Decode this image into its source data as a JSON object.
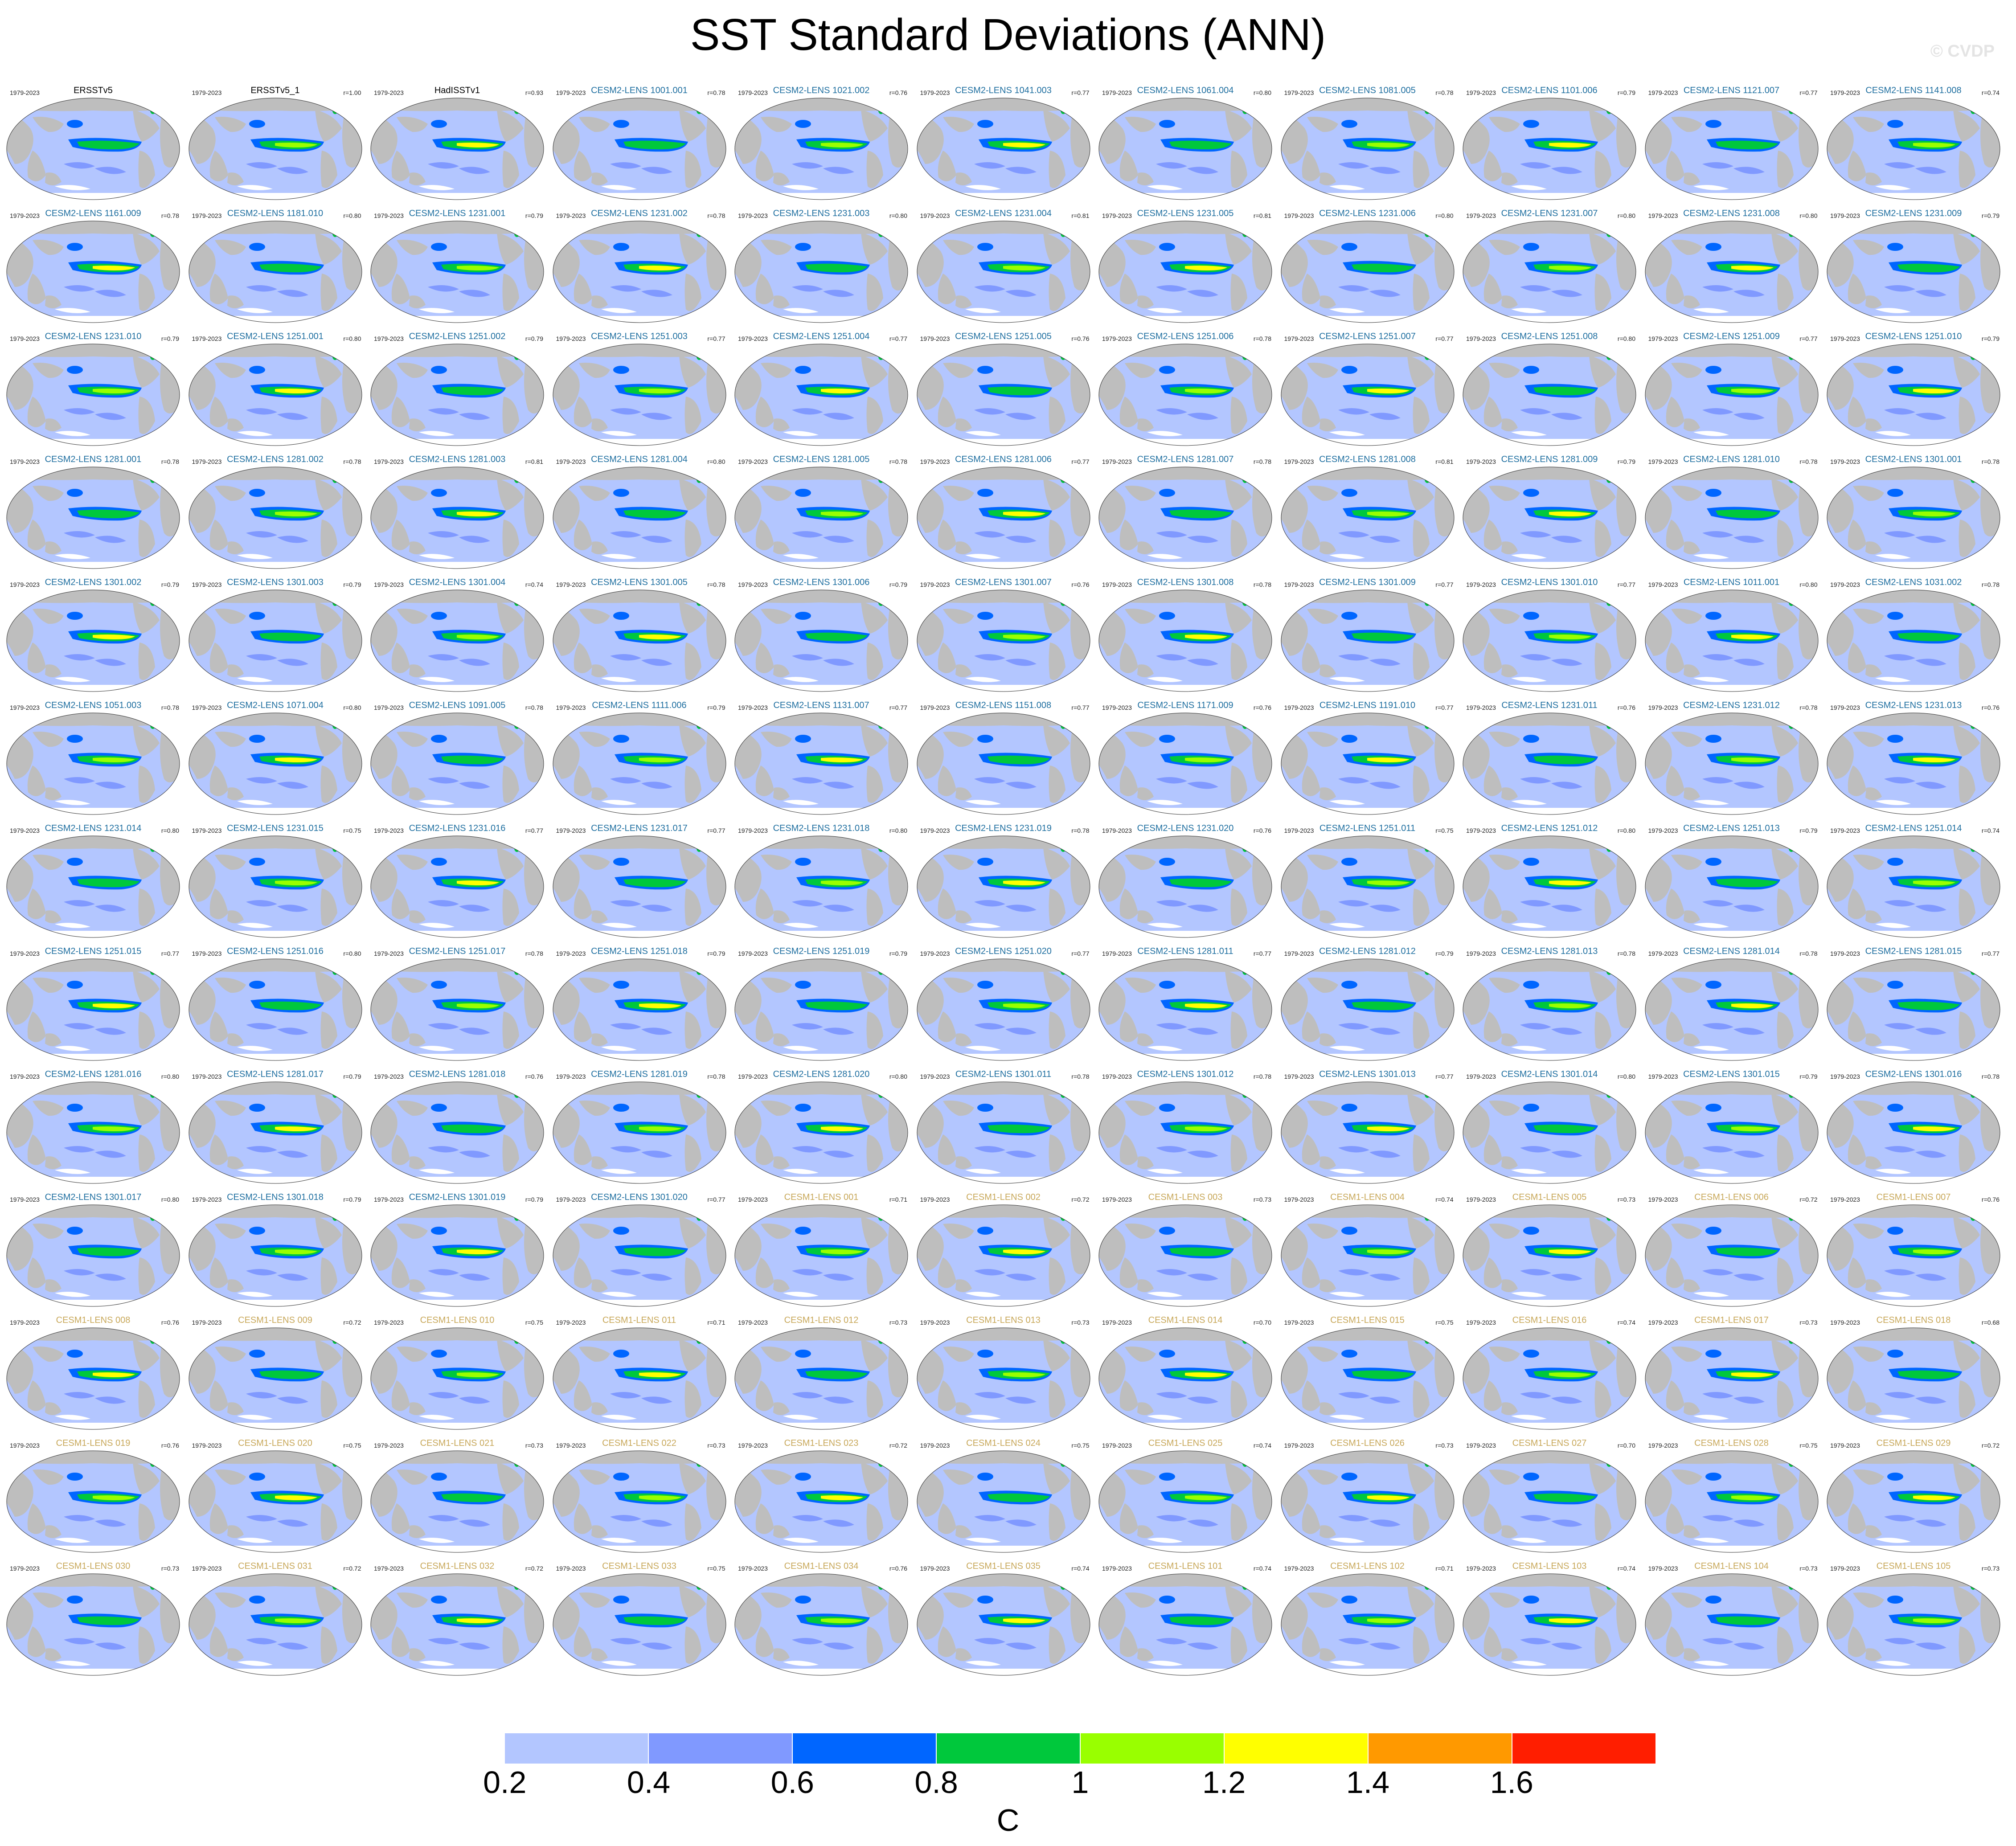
{
  "title": "SST Standard Deviations (ANN)",
  "watermark": "© CVDP",
  "colors": {
    "land": "#bebebe",
    "ocean_base": "#b3c6ff",
    "group_obs": "#000000",
    "group_cesm2": "#1f6fa0",
    "group_cesm1": "#c8a85a"
  },
  "panel_rows": [
    [
      {
        "name": "ERSSTv5",
        "period": "1979-2023",
        "r": "",
        "group": "obs"
      },
      {
        "name": "ERSSTv5_1",
        "period": "1979-2023",
        "r": "r=1.00",
        "group": "obs"
      },
      {
        "name": "HadISSTv1",
        "period": "1979-2023",
        "r": "r=0.93",
        "group": "obs"
      },
      {
        "name": "CESM2-LENS 1001.001",
        "period": "1979-2023",
        "r": "r=0.78",
        "group": "cesm2"
      },
      {
        "name": "CESM2-LENS 1021.002",
        "period": "1979-2023",
        "r": "r=0.76",
        "group": "cesm2"
      },
      {
        "name": "CESM2-LENS 1041.003",
        "period": "1979-2023",
        "r": "r=0.77",
        "group": "cesm2"
      },
      {
        "name": "CESM2-LENS 1061.004",
        "period": "1979-2023",
        "r": "r=0.80",
        "group": "cesm2"
      },
      {
        "name": "CESM2-LENS 1081.005",
        "period": "1979-2023",
        "r": "r=0.78",
        "group": "cesm2"
      },
      {
        "name": "CESM2-LENS 1101.006",
        "period": "1979-2023",
        "r": "r=0.79",
        "group": "cesm2"
      },
      {
        "name": "CESM2-LENS 1121.007",
        "period": "1979-2023",
        "r": "r=0.77",
        "group": "cesm2"
      },
      {
        "name": "CESM2-LENS 1141.008",
        "period": "1979-2023",
        "r": "r=0.74",
        "group": "cesm2"
      }
    ],
    [
      {
        "name": "CESM2-LENS 1161.009",
        "period": "1979-2023",
        "r": "r=0.78",
        "group": "cesm2"
      },
      {
        "name": "CESM2-LENS 1181.010",
        "period": "1979-2023",
        "r": "r=0.80",
        "group": "cesm2"
      },
      {
        "name": "CESM2-LENS 1231.001",
        "period": "1979-2023",
        "r": "r=0.79",
        "group": "cesm2"
      },
      {
        "name": "CESM2-LENS 1231.002",
        "period": "1979-2023",
        "r": "r=0.78",
        "group": "cesm2"
      },
      {
        "name": "CESM2-LENS 1231.003",
        "period": "1979-2023",
        "r": "r=0.80",
        "group": "cesm2"
      },
      {
        "name": "CESM2-LENS 1231.004",
        "period": "1979-2023",
        "r": "r=0.81",
        "group": "cesm2"
      },
      {
        "name": "CESM2-LENS 1231.005",
        "period": "1979-2023",
        "r": "r=0.81",
        "group": "cesm2"
      },
      {
        "name": "CESM2-LENS 1231.006",
        "period": "1979-2023",
        "r": "r=0.80",
        "group": "cesm2"
      },
      {
        "name": "CESM2-LENS 1231.007",
        "period": "1979-2023",
        "r": "r=0.80",
        "group": "cesm2"
      },
      {
        "name": "CESM2-LENS 1231.008",
        "period": "1979-2023",
        "r": "r=0.80",
        "group": "cesm2"
      },
      {
        "name": "CESM2-LENS 1231.009",
        "period": "1979-2023",
        "r": "r=0.79",
        "group": "cesm2"
      }
    ],
    [
      {
        "name": "CESM2-LENS 1231.010",
        "period": "1979-2023",
        "r": "r=0.79",
        "group": "cesm2"
      },
      {
        "name": "CESM2-LENS 1251.001",
        "period": "1979-2023",
        "r": "r=0.80",
        "group": "cesm2"
      },
      {
        "name": "CESM2-LENS 1251.002",
        "period": "1979-2023",
        "r": "r=0.79",
        "group": "cesm2"
      },
      {
        "name": "CESM2-LENS 1251.003",
        "period": "1979-2023",
        "r": "r=0.77",
        "group": "cesm2"
      },
      {
        "name": "CESM2-LENS 1251.004",
        "period": "1979-2023",
        "r": "r=0.77",
        "group": "cesm2"
      },
      {
        "name": "CESM2-LENS 1251.005",
        "period": "1979-2023",
        "r": "r=0.76",
        "group": "cesm2"
      },
      {
        "name": "CESM2-LENS 1251.006",
        "period": "1979-2023",
        "r": "r=0.78",
        "group": "cesm2"
      },
      {
        "name": "CESM2-LENS 1251.007",
        "period": "1979-2023",
        "r": "r=0.77",
        "group": "cesm2"
      },
      {
        "name": "CESM2-LENS 1251.008",
        "period": "1979-2023",
        "r": "r=0.80",
        "group": "cesm2"
      },
      {
        "name": "CESM2-LENS 1251.009",
        "period": "1979-2023",
        "r": "r=0.77",
        "group": "cesm2"
      },
      {
        "name": "CESM2-LENS 1251.010",
        "period": "1979-2023",
        "r": "r=0.79",
        "group": "cesm2"
      }
    ],
    [
      {
        "name": "CESM2-LENS 1281.001",
        "period": "1979-2023",
        "r": "r=0.78",
        "group": "cesm2"
      },
      {
        "name": "CESM2-LENS 1281.002",
        "period": "1979-2023",
        "r": "r=0.78",
        "group": "cesm2"
      },
      {
        "name": "CESM2-LENS 1281.003",
        "period": "1979-2023",
        "r": "r=0.81",
        "group": "cesm2"
      },
      {
        "name": "CESM2-LENS 1281.004",
        "period": "1979-2023",
        "r": "r=0.80",
        "group": "cesm2"
      },
      {
        "name": "CESM2-LENS 1281.005",
        "period": "1979-2023",
        "r": "r=0.78",
        "group": "cesm2"
      },
      {
        "name": "CESM2-LENS 1281.006",
        "period": "1979-2023",
        "r": "r=0.77",
        "group": "cesm2"
      },
      {
        "name": "CESM2-LENS 1281.007",
        "period": "1979-2023",
        "r": "r=0.78",
        "group": "cesm2"
      },
      {
        "name": "CESM2-LENS 1281.008",
        "period": "1979-2023",
        "r": "r=0.81",
        "group": "cesm2"
      },
      {
        "name": "CESM2-LENS 1281.009",
        "period": "1979-2023",
        "r": "r=0.79",
        "group": "cesm2"
      },
      {
        "name": "CESM2-LENS 1281.010",
        "period": "1979-2023",
        "r": "r=0.78",
        "group": "cesm2"
      },
      {
        "name": "CESM2-LENS 1301.001",
        "period": "1979-2023",
        "r": "r=0.78",
        "group": "cesm2"
      }
    ],
    [
      {
        "name": "CESM2-LENS 1301.002",
        "period": "1979-2023",
        "r": "r=0.79",
        "group": "cesm2"
      },
      {
        "name": "CESM2-LENS 1301.003",
        "period": "1979-2023",
        "r": "r=0.79",
        "group": "cesm2"
      },
      {
        "name": "CESM2-LENS 1301.004",
        "period": "1979-2023",
        "r": "r=0.74",
        "group": "cesm2"
      },
      {
        "name": "CESM2-LENS 1301.005",
        "period": "1979-2023",
        "r": "r=0.78",
        "group": "cesm2"
      },
      {
        "name": "CESM2-LENS 1301.006",
        "period": "1979-2023",
        "r": "r=0.79",
        "group": "cesm2"
      },
      {
        "name": "CESM2-LENS 1301.007",
        "period": "1979-2023",
        "r": "r=0.76",
        "group": "cesm2"
      },
      {
        "name": "CESM2-LENS 1301.008",
        "period": "1979-2023",
        "r": "r=0.78",
        "group": "cesm2"
      },
      {
        "name": "CESM2-LENS 1301.009",
        "period": "1979-2023",
        "r": "r=0.77",
        "group": "cesm2"
      },
      {
        "name": "CESM2-LENS 1301.010",
        "period": "1979-2023",
        "r": "r=0.77",
        "group": "cesm2"
      },
      {
        "name": "CESM2-LENS 1011.001",
        "period": "1979-2023",
        "r": "r=0.80",
        "group": "cesm2b"
      },
      {
        "name": "CESM2-LENS 1031.002",
        "period": "1979-2023",
        "r": "r=0.78",
        "group": "cesm2b"
      }
    ],
    [
      {
        "name": "CESM2-LENS 1051.003",
        "period": "1979-2023",
        "r": "r=0.78",
        "group": "cesm2b"
      },
      {
        "name": "CESM2-LENS 1071.004",
        "period": "1979-2023",
        "r": "r=0.80",
        "group": "cesm2b"
      },
      {
        "name": "CESM2-LENS 1091.005",
        "period": "1979-2023",
        "r": "r=0.78",
        "group": "cesm2b"
      },
      {
        "name": "CESM2-LENS 1111.006",
        "period": "1979-2023",
        "r": "r=0.79",
        "group": "cesm2b"
      },
      {
        "name": "CESM2-LENS 1131.007",
        "period": "1979-2023",
        "r": "r=0.77",
        "group": "cesm2b"
      },
      {
        "name": "CESM2-LENS 1151.008",
        "period": "1979-2023",
        "r": "r=0.77",
        "group": "cesm2b"
      },
      {
        "name": "CESM2-LENS 1171.009",
        "period": "1979-2023",
        "r": "r=0.76",
        "group": "cesm2b"
      },
      {
        "name": "CESM2-LENS 1191.010",
        "period": "1979-2023",
        "r": "r=0.77",
        "group": "cesm2b"
      },
      {
        "name": "CESM2-LENS 1231.011",
        "period": "1979-2023",
        "r": "r=0.76",
        "group": "cesm2b"
      },
      {
        "name": "CESM2-LENS 1231.012",
        "period": "1979-2023",
        "r": "r=0.78",
        "group": "cesm2b"
      },
      {
        "name": "CESM2-LENS 1231.013",
        "period": "1979-2023",
        "r": "r=0.76",
        "group": "cesm2b"
      }
    ],
    [
      {
        "name": "CESM2-LENS 1231.014",
        "period": "1979-2023",
        "r": "r=0.80",
        "group": "cesm2b"
      },
      {
        "name": "CESM2-LENS 1231.015",
        "period": "1979-2023",
        "r": "r=0.75",
        "group": "cesm2b"
      },
      {
        "name": "CESM2-LENS 1231.016",
        "period": "1979-2023",
        "r": "r=0.77",
        "group": "cesm2b"
      },
      {
        "name": "CESM2-LENS 1231.017",
        "period": "1979-2023",
        "r": "r=0.77",
        "group": "cesm2b"
      },
      {
        "name": "CESM2-LENS 1231.018",
        "period": "1979-2023",
        "r": "r=0.80",
        "group": "cesm2b"
      },
      {
        "name": "CESM2-LENS 1231.019",
        "period": "1979-2023",
        "r": "r=0.78",
        "group": "cesm2b"
      },
      {
        "name": "CESM2-LENS 1231.020",
        "period": "1979-2023",
        "r": "r=0.76",
        "group": "cesm2b"
      },
      {
        "name": "CESM2-LENS 1251.011",
        "period": "1979-2023",
        "r": "r=0.75",
        "group": "cesm2b"
      },
      {
        "name": "CESM2-LENS 1251.012",
        "period": "1979-2023",
        "r": "r=0.80",
        "group": "cesm2b"
      },
      {
        "name": "CESM2-LENS 1251.013",
        "period": "1979-2023",
        "r": "r=0.79",
        "group": "cesm2b"
      },
      {
        "name": "CESM2-LENS 1251.014",
        "period": "1979-2023",
        "r": "r=0.74",
        "group": "cesm2b"
      }
    ],
    [
      {
        "name": "CESM2-LENS 1251.015",
        "period": "1979-2023",
        "r": "r=0.77",
        "group": "cesm2b"
      },
      {
        "name": "CESM2-LENS 1251.016",
        "period": "1979-2023",
        "r": "r=0.80",
        "group": "cesm2b"
      },
      {
        "name": "CESM2-LENS 1251.017",
        "period": "1979-2023",
        "r": "r=0.78",
        "group": "cesm2b"
      },
      {
        "name": "CESM2-LENS 1251.018",
        "period": "1979-2023",
        "r": "r=0.79",
        "group": "cesm2b"
      },
      {
        "name": "CESM2-LENS 1251.019",
        "period": "1979-2023",
        "r": "r=0.79",
        "group": "cesm2b"
      },
      {
        "name": "CESM2-LENS 1251.020",
        "period": "1979-2023",
        "r": "r=0.77",
        "group": "cesm2b"
      },
      {
        "name": "CESM2-LENS 1281.011",
        "period": "1979-2023",
        "r": "r=0.77",
        "group": "cesm2b"
      },
      {
        "name": "CESM2-LENS 1281.012",
        "period": "1979-2023",
        "r": "r=0.79",
        "group": "cesm2b"
      },
      {
        "name": "CESM2-LENS 1281.013",
        "period": "1979-2023",
        "r": "r=0.78",
        "group": "cesm2b"
      },
      {
        "name": "CESM2-LENS 1281.014",
        "period": "1979-2023",
        "r": "r=0.78",
        "group": "cesm2b"
      },
      {
        "name": "CESM2-LENS 1281.015",
        "period": "1979-2023",
        "r": "r=0.77",
        "group": "cesm2b"
      }
    ],
    [
      {
        "name": "CESM2-LENS 1281.016",
        "period": "1979-2023",
        "r": "r=0.80",
        "group": "cesm2b"
      },
      {
        "name": "CESM2-LENS 1281.017",
        "period": "1979-2023",
        "r": "r=0.79",
        "group": "cesm2b"
      },
      {
        "name": "CESM2-LENS 1281.018",
        "period": "1979-2023",
        "r": "r=0.76",
        "group": "cesm2b"
      },
      {
        "name": "CESM2-LENS 1281.019",
        "period": "1979-2023",
        "r": "r=0.78",
        "group": "cesm2b"
      },
      {
        "name": "CESM2-LENS 1281.020",
        "period": "1979-2023",
        "r": "r=0.80",
        "group": "cesm2b"
      },
      {
        "name": "CESM2-LENS 1301.011",
        "period": "1979-2023",
        "r": "r=0.78",
        "group": "cesm2b"
      },
      {
        "name": "CESM2-LENS 1301.012",
        "period": "1979-2023",
        "r": "r=0.78",
        "group": "cesm2b"
      },
      {
        "name": "CESM2-LENS 1301.013",
        "period": "1979-2023",
        "r": "r=0.77",
        "group": "cesm2b"
      },
      {
        "name": "CESM2-LENS 1301.014",
        "period": "1979-2023",
        "r": "r=0.80",
        "group": "cesm2b"
      },
      {
        "name": "CESM2-LENS 1301.015",
        "period": "1979-2023",
        "r": "r=0.79",
        "group": "cesm2b"
      },
      {
        "name": "CESM2-LENS 1301.016",
        "period": "1979-2023",
        "r": "r=0.78",
        "group": "cesm2b"
      }
    ],
    [
      {
        "name": "CESM2-LENS 1301.017",
        "period": "1979-2023",
        "r": "r=0.80",
        "group": "cesm2b"
      },
      {
        "name": "CESM2-LENS 1301.018",
        "period": "1979-2023",
        "r": "r=0.79",
        "group": "cesm2b"
      },
      {
        "name": "CESM2-LENS 1301.019",
        "period": "1979-2023",
        "r": "r=0.79",
        "group": "cesm2b"
      },
      {
        "name": "CESM2-LENS 1301.020",
        "period": "1979-2023",
        "r": "r=0.77",
        "group": "cesm2b"
      },
      {
        "name": "CESM1-LENS 001",
        "period": "1979-2023",
        "r": "r=0.71",
        "group": "cesm1"
      },
      {
        "name": "CESM1-LENS 002",
        "period": "1979-2023",
        "r": "r=0.72",
        "group": "cesm1"
      },
      {
        "name": "CESM1-LENS 003",
        "period": "1979-2023",
        "r": "r=0.73",
        "group": "cesm1"
      },
      {
        "name": "CESM1-LENS 004",
        "period": "1979-2023",
        "r": "r=0.74",
        "group": "cesm1"
      },
      {
        "name": "CESM1-LENS 005",
        "period": "1979-2023",
        "r": "r=0.73",
        "group": "cesm1"
      },
      {
        "name": "CESM1-LENS 006",
        "period": "1979-2023",
        "r": "r=0.72",
        "group": "cesm1"
      },
      {
        "name": "CESM1-LENS 007",
        "period": "1979-2023",
        "r": "r=0.76",
        "group": "cesm1"
      }
    ],
    [
      {
        "name": "CESM1-LENS 008",
        "period": "1979-2023",
        "r": "r=0.76",
        "group": "cesm1"
      },
      {
        "name": "CESM1-LENS 009",
        "period": "1979-2023",
        "r": "r=0.72",
        "group": "cesm1"
      },
      {
        "name": "CESM1-LENS 010",
        "period": "1979-2023",
        "r": "r=0.75",
        "group": "cesm1"
      },
      {
        "name": "CESM1-LENS 011",
        "period": "1979-2023",
        "r": "r=0.71",
        "group": "cesm1"
      },
      {
        "name": "CESM1-LENS 012",
        "period": "1979-2023",
        "r": "r=0.73",
        "group": "cesm1"
      },
      {
        "name": "CESM1-LENS 013",
        "period": "1979-2023",
        "r": "r=0.73",
        "group": "cesm1"
      },
      {
        "name": "CESM1-LENS 014",
        "period": "1979-2023",
        "r": "r=0.70",
        "group": "cesm1"
      },
      {
        "name": "CESM1-LENS 015",
        "period": "1979-2023",
        "r": "r=0.75",
        "group": "cesm1"
      },
      {
        "name": "CESM1-LENS 016",
        "period": "1979-2023",
        "r": "r=0.74",
        "group": "cesm1"
      },
      {
        "name": "CESM1-LENS 017",
        "period": "1979-2023",
        "r": "r=0.73",
        "group": "cesm1"
      },
      {
        "name": "CESM1-LENS 018",
        "period": "1979-2023",
        "r": "r=0.68",
        "group": "cesm1"
      }
    ],
    [
      {
        "name": "CESM1-LENS 019",
        "period": "1979-2023",
        "r": "r=0.76",
        "group": "cesm1"
      },
      {
        "name": "CESM1-LENS 020",
        "period": "1979-2023",
        "r": "r=0.75",
        "group": "cesm1"
      },
      {
        "name": "CESM1-LENS 021",
        "period": "1979-2023",
        "r": "r=0.73",
        "group": "cesm1"
      },
      {
        "name": "CESM1-LENS 022",
        "period": "1979-2023",
        "r": "r=0.73",
        "group": "cesm1"
      },
      {
        "name": "CESM1-LENS 023",
        "period": "1979-2023",
        "r": "r=0.72",
        "group": "cesm1"
      },
      {
        "name": "CESM1-LENS 024",
        "period": "1979-2023",
        "r": "r=0.75",
        "group": "cesm1"
      },
      {
        "name": "CESM1-LENS 025",
        "period": "1979-2023",
        "r": "r=0.74",
        "group": "cesm1"
      },
      {
        "name": "CESM1-LENS 026",
        "period": "1979-2023",
        "r": "r=0.73",
        "group": "cesm1"
      },
      {
        "name": "CESM1-LENS 027",
        "period": "1979-2023",
        "r": "r=0.70",
        "group": "cesm1"
      },
      {
        "name": "CESM1-LENS 028",
        "period": "1979-2023",
        "r": "r=0.75",
        "group": "cesm1"
      },
      {
        "name": "CESM1-LENS 029",
        "period": "1979-2023",
        "r": "r=0.72",
        "group": "cesm1"
      }
    ],
    [
      {
        "name": "CESM1-LENS 030",
        "period": "1979-2023",
        "r": "r=0.73",
        "group": "cesm1"
      },
      {
        "name": "CESM1-LENS 031",
        "period": "1979-2023",
        "r": "r=0.72",
        "group": "cesm1"
      },
      {
        "name": "CESM1-LENS 032",
        "period": "1979-2023",
        "r": "r=0.72",
        "group": "cesm1"
      },
      {
        "name": "CESM1-LENS 033",
        "period": "1979-2023",
        "r": "r=0.75",
        "group": "cesm1"
      },
      {
        "name": "CESM1-LENS 034",
        "period": "1979-2023",
        "r": "r=0.76",
        "group": "cesm1"
      },
      {
        "name": "CESM1-LENS 035",
        "period": "1979-2023",
        "r": "r=0.74",
        "group": "cesm1"
      },
      {
        "name": "CESM1-LENS 101",
        "period": "1979-2023",
        "r": "r=0.74",
        "group": "cesm1"
      },
      {
        "name": "CESM1-LENS 102",
        "period": "1979-2023",
        "r": "r=0.71",
        "group": "cesm1"
      },
      {
        "name": "CESM1-LENS 103",
        "period": "1979-2023",
        "r": "r=0.74",
        "group": "cesm1"
      },
      {
        "name": "CESM1-LENS 104",
        "period": "1979-2023",
        "r": "r=0.73",
        "group": "cesm1"
      },
      {
        "name": "CESM1-LENS 105",
        "period": "1979-2023",
        "r": "r=0.73",
        "group": "cesm1"
      }
    ]
  ],
  "colorbar": {
    "unit": "C",
    "colors": [
      "#ffffff",
      "#b3c6ff",
      "#8099ff",
      "#0066ff",
      "#00c83c",
      "#99ff00",
      "#ffff00",
      "#ff9900",
      "#ff1e00"
    ],
    "ticks": [
      "0.2",
      "0.4",
      "0.6",
      "0.8",
      "1",
      "1.2",
      "1.4",
      "1.6"
    ]
  }
}
